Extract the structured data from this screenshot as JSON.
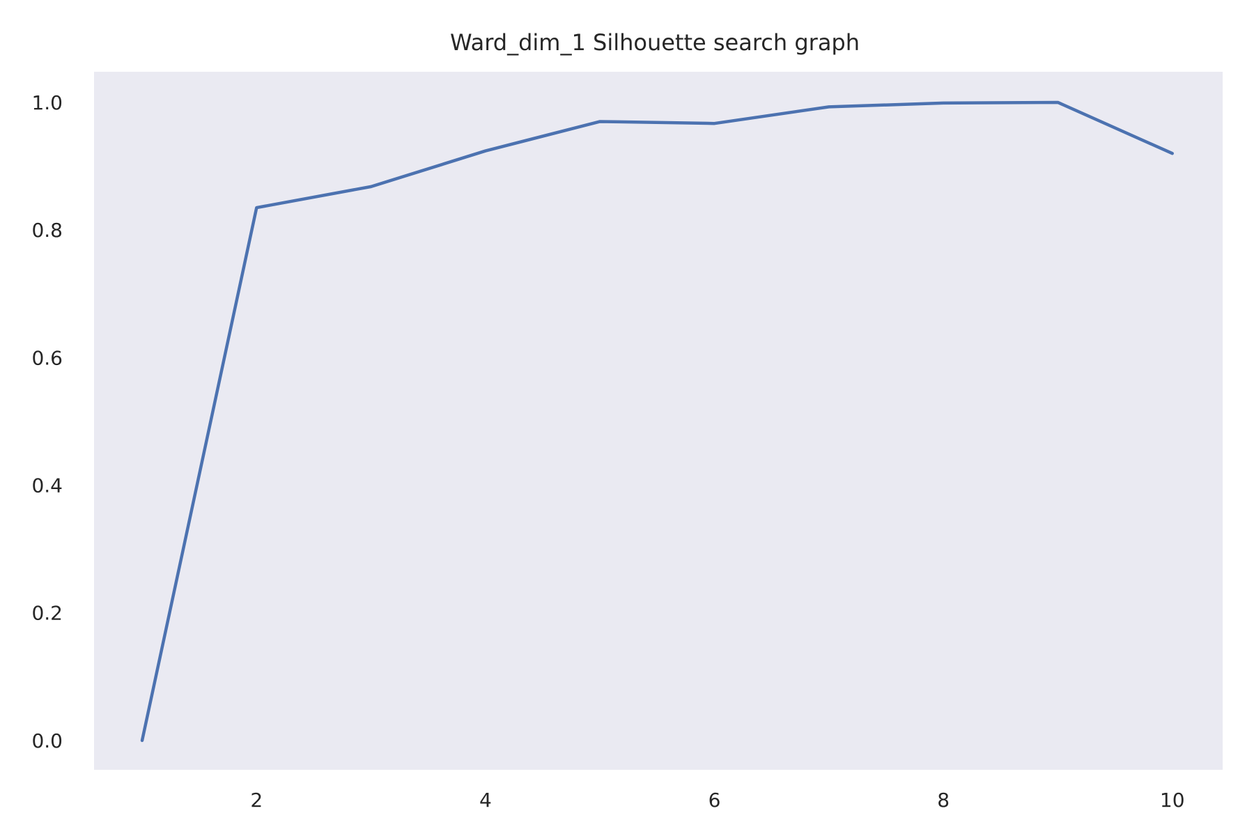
{
  "chart_data": {
    "type": "line",
    "title": "Ward_dim_1 Silhouette search graph",
    "xlabel": "",
    "ylabel": "",
    "x": [
      1,
      2,
      3,
      4,
      5,
      6,
      7,
      8,
      9,
      10
    ],
    "series": [
      {
        "values": [
          0.0,
          0.835,
          0.868,
          0.924,
          0.97,
          0.967,
          0.993,
          0.999,
          1.0,
          0.92
        ]
      }
    ],
    "xlim": [
      0.58,
      10.44
    ],
    "ylim": [
      -0.046,
      1.048
    ],
    "xticks": [
      2,
      4,
      6,
      8,
      10
    ],
    "yticks": [
      0.0,
      0.2,
      0.4,
      0.6,
      0.8,
      1.0
    ],
    "xtick_labels": [
      "2",
      "4",
      "6",
      "8",
      "10"
    ],
    "ytick_labels": [
      "0.0",
      "0.2",
      "0.4",
      "0.6",
      "0.8",
      "1.0"
    ],
    "grid": false,
    "legend": "none",
    "colors": {
      "plot_background": "#eaeaf2",
      "line": "#4c72b0",
      "text": "#262626"
    }
  }
}
